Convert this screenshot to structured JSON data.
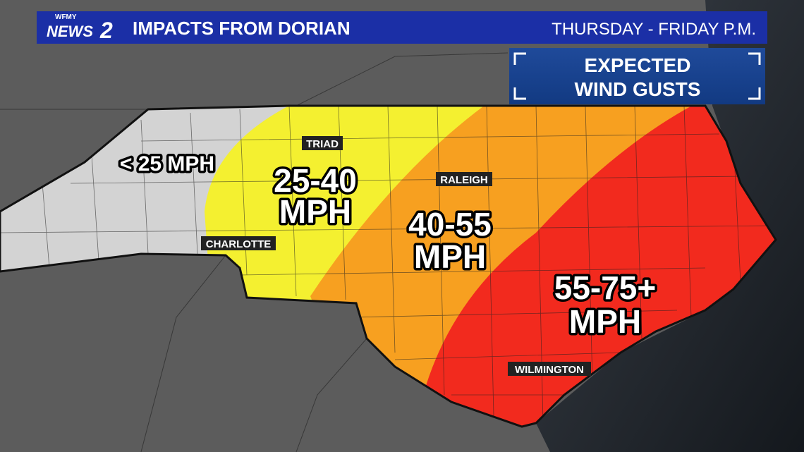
{
  "header": {
    "logo_top": "WFMY",
    "logo_main": "NEWS",
    "logo_num": "2",
    "title": "IMPACTS FROM DORIAN",
    "timeframe": "THURSDAY - FRIDAY P.M."
  },
  "legend_box": {
    "lines": [
      "EXPECTED",
      "WIND GUSTS"
    ]
  },
  "zones": [
    {
      "lines": [
        "< 25 MPH"
      ]
    },
    {
      "lines": [
        "25-40",
        "MPH"
      ]
    },
    {
      "lines": [
        "40-55",
        "MPH"
      ]
    },
    {
      "lines": [
        "55-75+",
        "MPH"
      ]
    }
  ],
  "cities": [
    {
      "label": "TRIAD"
    },
    {
      "label": "RALEIGH"
    },
    {
      "label": "CHARLOTTE"
    },
    {
      "label": "WILMINGTON"
    }
  ]
}
